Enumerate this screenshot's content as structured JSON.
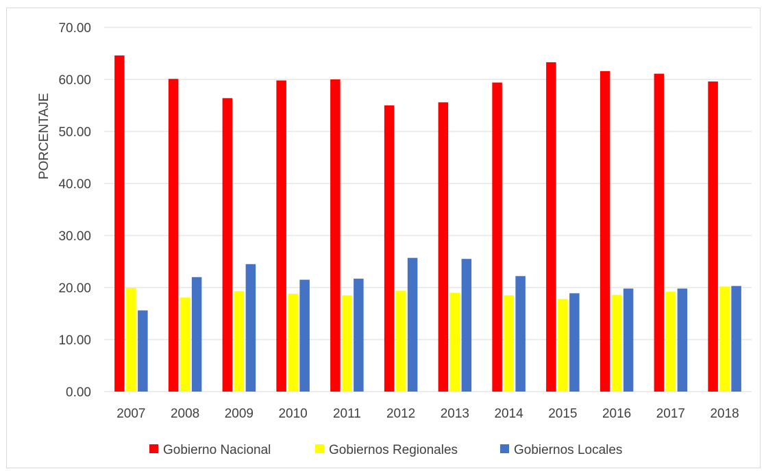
{
  "chart_data": {
    "type": "bar",
    "title": "",
    "xlabel": "",
    "ylabel": "PORCENTAJE",
    "ylim": [
      0,
      70
    ],
    "yticks": [
      "0.00",
      "10.00",
      "20.00",
      "30.00",
      "40.00",
      "50.00",
      "60.00",
      "70.00"
    ],
    "categories": [
      "2007",
      "2008",
      "2009",
      "2010",
      "2011",
      "2012",
      "2013",
      "2014",
      "2015",
      "2016",
      "2017",
      "2018"
    ],
    "grid": "horizontal",
    "legend_position": "bottom",
    "series": [
      {
        "name": "Gobierno Nacional",
        "color": "#ff0000",
        "values": [
          64.6,
          60.1,
          56.4,
          59.8,
          60.0,
          55.0,
          55.6,
          59.4,
          63.3,
          61.6,
          61.1,
          59.6
        ]
      },
      {
        "name": "Gobiernos Regionales",
        "color": "#ffff00",
        "values": [
          19.9,
          18.1,
          19.3,
          18.8,
          18.5,
          19.4,
          19.0,
          18.5,
          17.8,
          18.6,
          19.2,
          20.2
        ]
      },
      {
        "name": "Gobiernos Locales",
        "color": "#4472c4",
        "values": [
          15.6,
          22.0,
          24.5,
          21.5,
          21.7,
          25.7,
          25.5,
          22.2,
          18.9,
          19.8,
          19.8,
          20.3
        ]
      }
    ]
  }
}
